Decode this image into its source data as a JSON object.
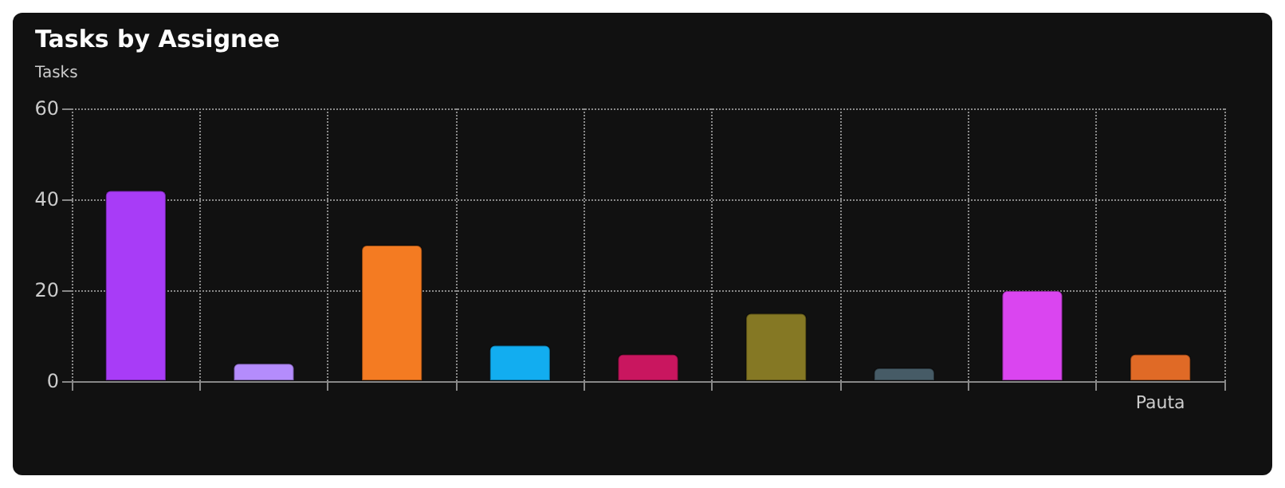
{
  "chart_data": {
    "type": "bar",
    "title": "Tasks by Assignee",
    "ylabel": "Tasks",
    "categories": [
      null,
      null,
      null,
      null,
      null,
      null,
      null,
      null,
      "Pauta"
    ],
    "values": [
      42,
      4,
      30,
      8,
      6,
      15,
      3,
      20,
      6
    ],
    "colors": [
      "#a83cf7",
      "#b48cfc",
      "#f47b22",
      "#12adf0",
      "#c9165f",
      "#857824",
      "#465b66",
      "#da45f0",
      "#e06a26"
    ],
    "ylim": [
      0,
      60
    ],
    "yticks": [
      0,
      20,
      40,
      60
    ],
    "grid": true
  }
}
